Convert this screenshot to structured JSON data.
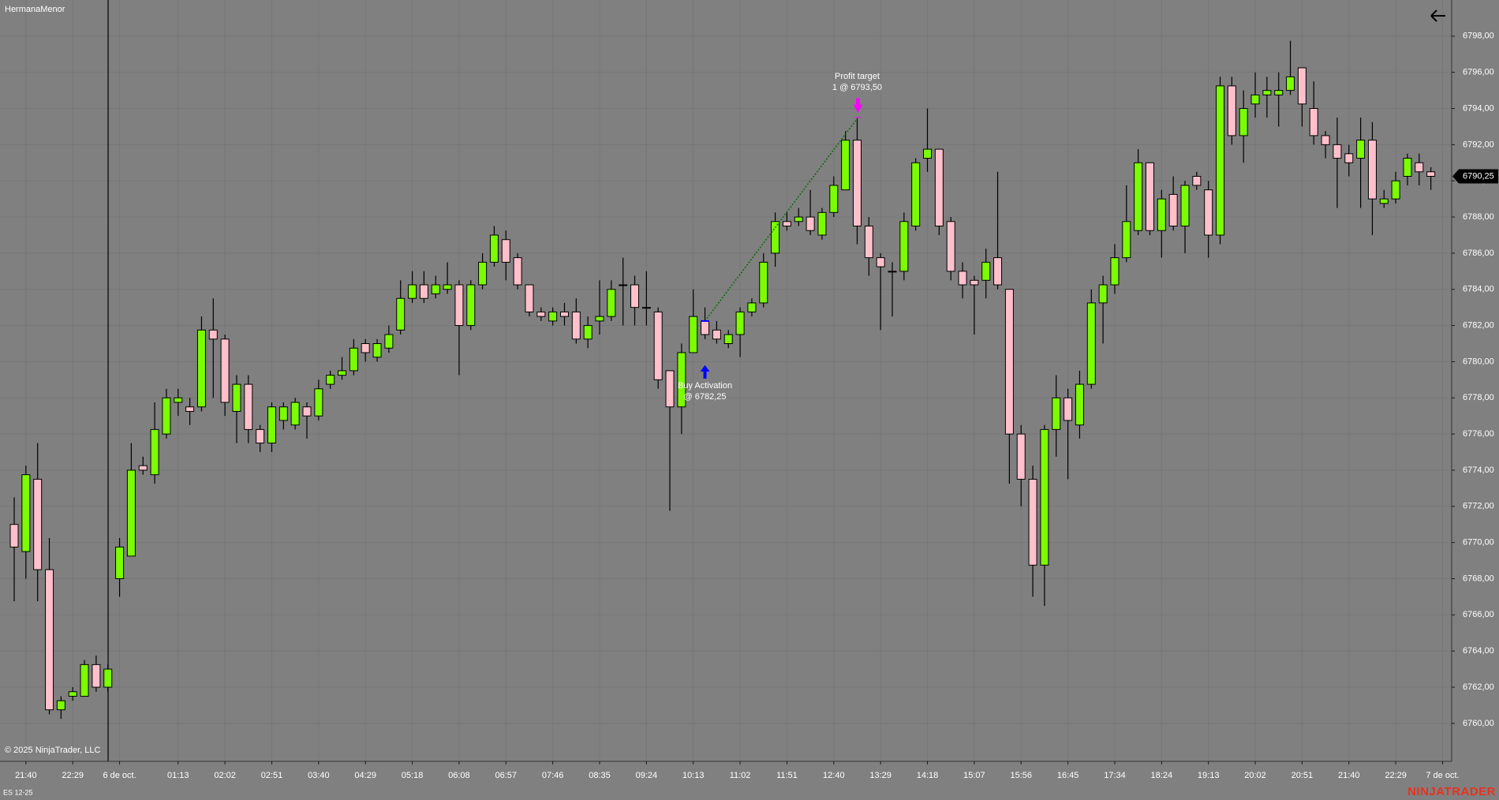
{
  "chart_data": {
    "type": "candlestick",
    "title": "HermanaMenor",
    "copyright": "© 2025 NinjaTrader, LLC",
    "instrument": "ES 12-25",
    "brand": "NINJATRADER",
    "up_color": "#7cfc00",
    "down_color": "#ffc0cb",
    "grid": true,
    "categories": [
      null,
      "21:40",
      null,
      null,
      null,
      "22:29",
      null,
      null,
      null,
      "6 de oct.",
      null,
      null,
      null,
      null,
      "01:13",
      null,
      null,
      null,
      "02:02",
      null,
      null,
      null,
      "02:51",
      null,
      null,
      null,
      "03:40",
      null,
      null,
      null,
      "04:29",
      null,
      null,
      null,
      "05:18",
      null,
      null,
      null,
      "06:08",
      null,
      null,
      null,
      "06:57",
      null,
      null,
      null,
      "07:46",
      null,
      null,
      null,
      "08:35",
      null,
      null,
      null,
      "09:24",
      null,
      null,
      null,
      "10:13",
      null,
      null,
      null,
      "11:02",
      null,
      null,
      null,
      "11:51",
      null,
      null,
      null,
      "12:40",
      null,
      null,
      null,
      "13:29",
      null,
      null,
      null,
      "14:18",
      null,
      null,
      null,
      "15:07",
      null,
      null,
      null,
      "15:56",
      null,
      null,
      null,
      "16:45",
      null,
      null,
      null,
      "17:34",
      null,
      null,
      null,
      "18:24",
      null,
      null,
      null,
      "19:13",
      null,
      null,
      null,
      "20:02",
      null,
      null,
      null,
      "20:51",
      null,
      null,
      null,
      "21:40",
      null,
      null,
      null,
      "22:29",
      null,
      null,
      null,
      "7 de oct."
    ],
    "open": [
      6771,
      6769.5,
      6773.5,
      6768.5,
      6760.75,
      6761.5,
      6761.5,
      6763.25,
      6762,
      6768,
      6769.25,
      6774.25,
      6773.75,
      6776,
      6777.75,
      6777.5,
      6777.5,
      6781.75,
      6781.25,
      6777.25,
      6778.75,
      6776.25,
      6775.5,
      6776.75,
      6776.5,
      6777.5,
      6777,
      6778.75,
      6779.25,
      6779.5,
      6781,
      6780.25,
      6780.75,
      6781.75,
      6783.5,
      6784.25,
      6783.75,
      6784,
      6784.25,
      6782,
      6784.25,
      6785.5,
      6786.75,
      6785.75,
      6784.25,
      6782.75,
      6782.25,
      6782.75,
      6782.75,
      6781.25,
      6782.25,
      6782.5,
      6784.25,
      6784.25,
      6783,
      6782.75,
      6779.5,
      6777.5,
      6780.5,
      6782.25,
      6781.75,
      6781,
      6781.5,
      6782.75,
      6783.25,
      6786,
      6787.75,
      6787.75,
      6788,
      6787,
      6788.25,
      6789.5,
      6792.25,
      6787.5,
      6785.75,
      6785,
      6785,
      6787.5,
      6791.25,
      6791.75,
      6787.75,
      6785,
      6784.5,
      6784.5,
      6785.75,
      6784,
      6776,
      6773.5,
      6768.75,
      6776.25,
      6778,
      6776.5,
      6778.75,
      6783.25,
      6784.25,
      6785.75,
      6787.25,
      6791,
      6787.25,
      6789.25,
      6787.5,
      6790.25,
      6789.5,
      6787,
      6795.25,
      6792.5,
      6794.25,
      6794.75,
      6794.75,
      6795,
      6796.25,
      6794,
      6792.5,
      6792,
      6791.5,
      6791.25,
      6792.25,
      6788.75,
      6789,
      6790.25,
      6791,
      6790.5,
      null
    ],
    "high": [
      6772.5,
      6774.25,
      6775.5,
      6770.25,
      6761.5,
      6762,
      6763.5,
      6763.75,
      6763.25,
      6770.25,
      6775.5,
      6774.75,
      6777.75,
      6778.5,
      6778.5,
      6778,
      6782.5,
      6783.5,
      6781.5,
      6779.25,
      6779.25,
      6776.5,
      6777.75,
      6777.75,
      6778,
      6777.75,
      6779,
      6779.5,
      6780.25,
      6781.25,
      6781.25,
      6781.25,
      6782,
      6784.5,
      6785,
      6785,
      6784.75,
      6785.5,
      6784.5,
      6784.5,
      6786,
      6787.5,
      6787.25,
      6786,
      6784.25,
      6783,
      6783,
      6783.25,
      6783.5,
      6782.5,
      6784.5,
      6784.5,
      6785.75,
      6784.75,
      6785,
      6783,
      6779.5,
      6781,
      6784,
      6783,
      6782.25,
      6781.75,
      6783,
      6783.5,
      6786,
      6788.25,
      6788.25,
      6788.5,
      6789.5,
      6788.5,
      6790.25,
      6792.75,
      6793.5,
      6788,
      6786,
      6785.5,
      6788.25,
      6791.25,
      6794,
      6791.75,
      6788,
      6785.5,
      6784.75,
      6786.25,
      6790.5,
      6784,
      6776.5,
      6774.25,
      6776.5,
      6779.25,
      6778.5,
      6779.5,
      6784,
      6784.75,
      6786.5,
      6789.75,
      6791.75,
      6791,
      6789.5,
      6790.25,
      6790,
      6790.5,
      6790,
      6795.75,
      6795.75,
      6795,
      6796,
      6795.75,
      6796,
      6797.75,
      6796.25,
      6795.5,
      6792.75,
      6793.5,
      6792,
      6793.5,
      6793.25,
      6789.5,
      6790.5,
      6791.5,
      6791.5,
      6790.75,
      null
    ],
    "low": [
      6766.75,
      6768,
      6766.75,
      6760.5,
      6760.25,
      6761.25,
      6761.5,
      6761.75,
      6761.75,
      6767,
      6769.25,
      6773.75,
      6773.25,
      6775.75,
      6777,
      6776.5,
      6777.25,
      6778,
      6777,
      6775.5,
      6775.5,
      6775,
      6775,
      6776.25,
      6776.25,
      6775.75,
      6776.75,
      6778.5,
      6779,
      6779.25,
      6780,
      6780,
      6780.5,
      6781.5,
      6783.25,
      6783.25,
      6783.5,
      6783.75,
      6779.25,
      6781.75,
      6784,
      6785.25,
      6784.5,
      6784,
      6782.5,
      6782.25,
      6782,
      6782,
      6781,
      6780.75,
      6781.5,
      6782.25,
      6782,
      6782,
      6782,
      6778.5,
      6771.75,
      6776,
      6780.5,
      6781.25,
      6781,
      6780.75,
      6780.25,
      6782.5,
      6783,
      6785.25,
      6787.25,
      6787.5,
      6787,
      6786.75,
      6788,
      6789.5,
      6786.5,
      6784.75,
      6781.75,
      6782.5,
      6784.5,
      6787.25,
      6790.5,
      6787,
      6784.5,
      6783.5,
      6781.5,
      6783.5,
      6784,
      6773.25,
      6772,
      6767,
      6766.5,
      6774.75,
      6773.5,
      6775.75,
      6778.5,
      6781,
      6783.75,
      6785.5,
      6787,
      6787,
      6785.75,
      6787.25,
      6786,
      6789.5,
      6785.75,
      6786.5,
      6792,
      6791,
      6793.5,
      6793.5,
      6793,
      6794.75,
      6793,
      6792,
      6791.25,
      6788.5,
      6790.25,
      6788.5,
      6787,
      6788.5,
      6788.75,
      6789.75,
      6789.75,
      6789.5,
      null
    ],
    "close": [
      6769.75,
      6773.75,
      6768.5,
      6760.75,
      6761.25,
      6761.75,
      6763.25,
      6762,
      6763,
      6769.75,
      6774,
      6774,
      6776.25,
      6778,
      6778,
      6777.25,
      6781.75,
      6781.25,
      6777.75,
      6778.75,
      6776.25,
      6775.5,
      6777.5,
      6777.5,
      6777.75,
      6777,
      6778.5,
      6779.25,
      6779.5,
      6780.75,
      6780.5,
      6781,
      6781.5,
      6783.5,
      6784.25,
      6783.5,
      6784.25,
      6784.25,
      6782,
      6784.25,
      6785.5,
      6787,
      6785.5,
      6784.25,
      6782.75,
      6782.5,
      6782.75,
      6782.5,
      6781.25,
      6782,
      6782.5,
      6784,
      6784.25,
      6783,
      6783,
      6779,
      6777.5,
      6780.5,
      6782.5,
      6781.5,
      6781.25,
      6781.5,
      6782.75,
      6783.25,
      6785.5,
      6787.75,
      6787.5,
      6788,
      6787.25,
      6788.25,
      6789.75,
      6792.25,
      6787.5,
      6785.75,
      6785.25,
      6785,
      6787.75,
      6791,
      6791.75,
      6787.5,
      6785,
      6784.25,
      6784.25,
      6785.5,
      6784.25,
      6776,
      6773.5,
      6768.75,
      6776.25,
      6778,
      6776.75,
      6778.75,
      6783.25,
      6784.25,
      6785.75,
      6787.75,
      6791,
      6787.25,
      6789,
      6787.5,
      6789.75,
      6789.75,
      6787,
      6795.25,
      6792.5,
      6794,
      6794.75,
      6795,
      6795,
      6795.75,
      6794.25,
      6792.5,
      6792,
      6791.25,
      6791,
      6792.25,
      6789,
      6789,
      6790,
      6791.25,
      6790.5,
      6790.25,
      null
    ],
    "ylim": [
      6757.9,
      6800
    ],
    "yticks": [
      {
        "value": 6760,
        "label": "6760,00"
      },
      {
        "value": 6762,
        "label": "6762,00"
      },
      {
        "value": 6764,
        "label": "6764,00"
      },
      {
        "value": 6766,
        "label": "6766,00"
      },
      {
        "value": 6768,
        "label": "6768,00"
      },
      {
        "value": 6770,
        "label": "6770,00"
      },
      {
        "value": 6772,
        "label": "6772,00"
      },
      {
        "value": 6774,
        "label": "6774,00"
      },
      {
        "value": 6776,
        "label": "6776,00"
      },
      {
        "value": 6778,
        "label": "6778,00"
      },
      {
        "value": 6780,
        "label": "6780,00"
      },
      {
        "value": 6782,
        "label": "6782,00"
      },
      {
        "value": 6784,
        "label": "6784,00"
      },
      {
        "value": 6786,
        "label": "6786,00"
      },
      {
        "value": 6788,
        "label": "6788,00"
      },
      {
        "value": 6790,
        "label": "6790,00"
      },
      {
        "value": 6792,
        "label": "6792,00"
      },
      {
        "value": 6794,
        "label": "6794,00"
      },
      {
        "value": 6796,
        "label": "6796,00"
      },
      {
        "value": 6798,
        "label": "6798,00"
      }
    ],
    "last_price": {
      "value": 6790.25,
      "label": "6790,25"
    },
    "annotations": [
      {
        "label": "Profit target",
        "detail": "1 @ 6793,50",
        "price": 6793.5,
        "color": "#ff00ff"
      },
      {
        "label": "Buy Activation",
        "detail": "@ 6782,25",
        "price": 6782.25,
        "color": "#0000ff"
      }
    ]
  }
}
